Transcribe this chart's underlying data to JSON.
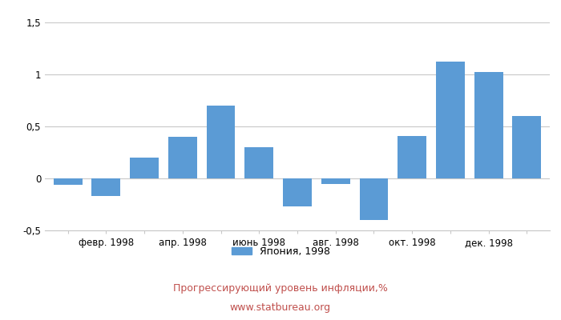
{
  "values": [
    -0.06,
    -0.17,
    0.2,
    0.4,
    0.7,
    0.3,
    -0.27,
    -0.05,
    -0.4,
    0.41,
    1.12,
    1.02,
    0.6
  ],
  "bar_color": "#5B9BD5",
  "ylim": [
    -0.5,
    1.5
  ],
  "yticks": [
    -0.5,
    0.0,
    0.5,
    1.0,
    1.5
  ],
  "ytick_labels": [
    "-0,5",
    "0",
    "0,5",
    "1",
    "1,5"
  ],
  "xtick_labels": [
    "",
    "февр. 1998",
    "",
    "апр. 1998",
    "",
    "июнь 1998",
    "",
    "авг. 1998",
    "",
    "окт. 1998",
    "",
    "дек. 1998",
    ""
  ],
  "legend_label": "Япония, 1998",
  "title": "Прогрессирующий уровень инфляции,%",
  "subtitle": "www.statbureau.org",
  "title_color": "#C0504D",
  "background_color": "#FFFFFF",
  "grid_color": "#C8C8C8"
}
